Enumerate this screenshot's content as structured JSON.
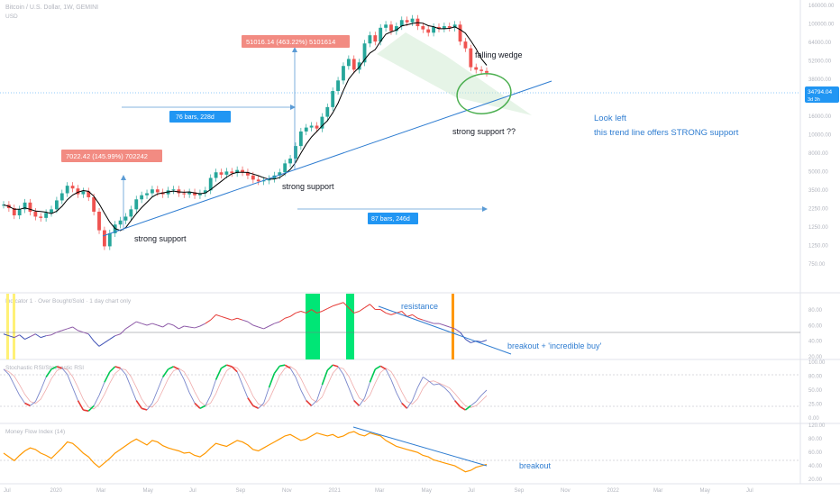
{
  "header": {
    "symbol": "Bitcoin / U.S. Dollar, 1W, GEMINI",
    "currency": "USD"
  },
  "price_scale": {
    "ticks": [
      "160000.00",
      "100000.00",
      "64000.00",
      "52000.00",
      "38000.00",
      "25000.00",
      "16000.00",
      "10000.00",
      "8000.00",
      "5000.00",
      "3500.00",
      "2250.00",
      "1250.00",
      "1250.00",
      "750.00"
    ],
    "last_price": "34794.04",
    "countdown": "3d 3h",
    "last_price_color": "#2196f3"
  },
  "time_axis": [
    "Jul",
    "2020",
    "Mar",
    "May",
    "Jul",
    "Sep",
    "Nov",
    "2021",
    "Mar",
    "May",
    "Jul",
    "Sep",
    "Nov",
    "2022",
    "Mar",
    "May",
    "Jul"
  ],
  "annotations": {
    "measure_top": "51016.14 (463.22%) 5101614",
    "measure_left": "7022.42 (145.99%) 702242",
    "bars_top": "76 bars, 228d",
    "bars_bottom": "87 bars, 246d",
    "falling_wedge": "falling wedge",
    "strong_support_q": "strong support ??",
    "strong_support_mid": "strong support",
    "strong_support_low": "strong support",
    "look_left": "Look left",
    "trend_line_note": "this trend line offers STRONG support",
    "resistance": "resistance",
    "breakout_buy": "breakout + 'incredible buy'",
    "breakout": "breakout"
  },
  "panes": {
    "rsi": {
      "title": "Indicator 1 · Over Bought/Sold · 1 day chart only",
      "ticks": [
        "80.00",
        "60.00",
        "40.00",
        "20.00"
      ]
    },
    "stoch": {
      "title": "Stochastic RSI/Stochastic RSI",
      "ticks": [
        "100.00",
        "80.00",
        "50.00",
        "25.00",
        "0.00"
      ]
    },
    "money": {
      "title": "Money Flow Index (14)",
      "ticks": [
        "120.00",
        "80.00",
        "60.00",
        "40.00",
        "20.00"
      ]
    }
  },
  "colors": {
    "up": "#26a69a",
    "down": "#ef5350",
    "ma": "#000000",
    "trendline": "#2f7dd1",
    "note": "#2f7dd1",
    "green_bar": "#00e676",
    "yellow_bar": "#fff176",
    "orange_bar": "#ff9800",
    "money": "#ff9800",
    "wedge": "#c8e6c9"
  },
  "chart_data": {
    "type": "line",
    "series": [
      {
        "values": [
          8200,
          7900,
          7300,
          7800,
          8400,
          7600,
          7200,
          7100,
          7500,
          7800,
          8600,
          9300,
          10100,
          9800,
          9200,
          9500,
          8900,
          7600,
          6200,
          5200,
          6000,
          6600,
          6900,
          7200,
          7800,
          8700,
          9100,
          9300,
          9700,
          9400,
          9200,
          9600,
          9700,
          9300,
          9200,
          9400,
          9100,
          9300,
          9600,
          11000,
          11700,
          11400,
          11800,
          11600,
          12000,
          11700,
          11300,
          10800,
          10600,
          10700,
          10900,
          11300,
          11700,
          12900,
          13600,
          15600,
          18300,
          19100,
          19500,
          18900,
          21500,
          23900,
          28500,
          32000,
          37500,
          40500,
          36000,
          39000,
          48000,
          52500,
          49000,
          57000,
          59000,
          55000,
          58000,
          62000,
          60500,
          63000,
          58000,
          56000,
          54000,
          57500,
          56500,
          58000,
          57000,
          59000,
          49000,
          45500,
          37000,
          36000,
          35500,
          34800
        ]
      },
      {
        "name": "RSI",
        "values": [
          46,
          44,
          42,
          45,
          40,
          43,
          46,
          42,
          44,
          45,
          48,
          50,
          52,
          54,
          50,
          48,
          46,
          38,
          32,
          36,
          40,
          44,
          46,
          52,
          56,
          60,
          58,
          56,
          58,
          56,
          54,
          58,
          56,
          52,
          55,
          54,
          53,
          55,
          58,
          62,
          68,
          66,
          64,
          62,
          64,
          62,
          60,
          56,
          54,
          52,
          55,
          58,
          60,
          64,
          66,
          70,
          72,
          70,
          74,
          70,
          72,
          75,
          78,
          80,
          82,
          76,
          70,
          72,
          76,
          80,
          74,
          74,
          70,
          68,
          70,
          72,
          66,
          68,
          64,
          62,
          60,
          58,
          58,
          56,
          54,
          52,
          48,
          40,
          36,
          38,
          37,
          39
        ]
      },
      {
        "name": "Stoch RSI",
        "values": [
          90,
          80,
          60,
          40,
          25,
          20,
          28,
          50,
          75,
          90,
          95,
          92,
          80,
          55,
          30,
          12,
          10,
          20,
          40,
          65,
          85,
          95,
          92,
          80,
          55,
          30,
          15,
          12,
          25,
          50,
          75,
          90,
          95,
          90,
          70,
          45,
          25,
          15,
          20,
          40,
          70,
          92,
          98,
          95,
          85,
          60,
          35,
          20,
          15,
          25,
          55,
          82,
          96,
          98,
          92,
          75,
          50,
          30,
          20,
          30,
          60,
          88,
          98,
          95,
          80,
          55,
          30,
          20,
          35,
          65,
          90,
          96,
          90,
          70,
          45,
          25,
          15,
          30,
          55,
          75,
          68,
          60,
          62,
          55,
          45,
          30,
          18,
          12,
          20,
          28,
          40,
          50
        ]
      },
      {
        "name": "Money Flow",
        "values": [
          55,
          50,
          45,
          52,
          58,
          62,
          60,
          55,
          52,
          48,
          55,
          62,
          70,
          68,
          62,
          55,
          50,
          42,
          36,
          42,
          48,
          55,
          60,
          65,
          70,
          74,
          70,
          66,
          72,
          70,
          65,
          62,
          60,
          58,
          55,
          56,
          52,
          50,
          55,
          62,
          68,
          66,
          64,
          68,
          72,
          70,
          66,
          60,
          58,
          62,
          66,
          70,
          74,
          78,
          80,
          76,
          72,
          74,
          78,
          82,
          80,
          78,
          80,
          76,
          78,
          82,
          84,
          80,
          78,
          82,
          80,
          78,
          72,
          68,
          64,
          62,
          60,
          58,
          56,
          52,
          50,
          46,
          44,
          42,
          40,
          38,
          34,
          30,
          32,
          36,
          38,
          40
        ]
      }
    ]
  }
}
